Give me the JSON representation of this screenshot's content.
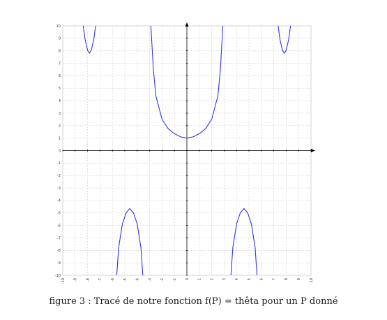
{
  "caption": {
    "prefix": "figure 3 :",
    "text": "Tracé de notre fonction f(P) = thêta pour un P donné"
  },
  "chart_data": {
    "type": "line",
    "title": "",
    "xlabel": "",
    "ylabel": "",
    "xlim": [
      -10,
      10
    ],
    "ylim": [
      -10,
      10
    ],
    "grid": true,
    "x_ticks": [
      -10,
      -9,
      -8,
      -7,
      -6,
      -5,
      -4,
      -3,
      -2,
      -1,
      0,
      1,
      2,
      3,
      4,
      5,
      6,
      7,
      8,
      9,
      10
    ],
    "y_ticks": [
      10,
      9,
      8,
      7,
      6,
      5,
      4,
      3,
      2,
      1,
      0,
      -1,
      -2,
      -3,
      -4,
      -5,
      -6,
      -7,
      -8,
      -9,
      -10
    ],
    "series": [
      {
        "color": "#3333ee",
        "segments": [
          [
            [
              -8.35,
              10
            ],
            [
              -8.2,
              8.9
            ],
            [
              -8.0,
              8.05
            ],
            [
              -7.85,
              7.8
            ],
            [
              -7.7,
              8.05
            ],
            [
              -7.5,
              8.9
            ],
            [
              -7.35,
              10
            ]
          ],
          [
            [
              -2.9,
              10
            ],
            [
              -2.7,
              6.5
            ],
            [
              -2.5,
              4.4
            ],
            [
              -2.0,
              2.5
            ],
            [
              -1.5,
              1.75
            ],
            [
              -1.0,
              1.35
            ],
            [
              -0.5,
              1.1
            ],
            [
              0,
              1.0
            ],
            [
              0.5,
              1.1
            ],
            [
              1.0,
              1.35
            ],
            [
              1.5,
              1.75
            ],
            [
              2.0,
              2.5
            ],
            [
              2.5,
              4.4
            ],
            [
              2.7,
              6.5
            ],
            [
              2.9,
              10
            ]
          ],
          [
            [
              7.35,
              10
            ],
            [
              7.5,
              8.9
            ],
            [
              7.7,
              8.05
            ],
            [
              7.85,
              7.8
            ],
            [
              8.0,
              8.05
            ],
            [
              8.2,
              8.9
            ],
            [
              8.35,
              10
            ]
          ],
          [
            [
              -5.65,
              -10
            ],
            [
              -5.5,
              -7.8
            ],
            [
              -5.2,
              -5.9
            ],
            [
              -4.9,
              -5.0
            ],
            [
              -4.6,
              -4.65
            ],
            [
              -4.3,
              -5.0
            ],
            [
              -4.0,
              -5.9
            ],
            [
              -3.7,
              -7.8
            ],
            [
              -3.55,
              -10
            ]
          ],
          [
            [
              3.55,
              -10
            ],
            [
              3.7,
              -7.8
            ],
            [
              4.0,
              -5.9
            ],
            [
              4.3,
              -5.0
            ],
            [
              4.6,
              -4.65
            ],
            [
              4.9,
              -5.0
            ],
            [
              5.2,
              -5.9
            ],
            [
              5.5,
              -7.8
            ],
            [
              5.65,
              -10
            ]
          ]
        ]
      }
    ],
    "colors": {
      "curve": "#3333ee",
      "axis": "#000000",
      "grid": "#cccccc"
    }
  }
}
